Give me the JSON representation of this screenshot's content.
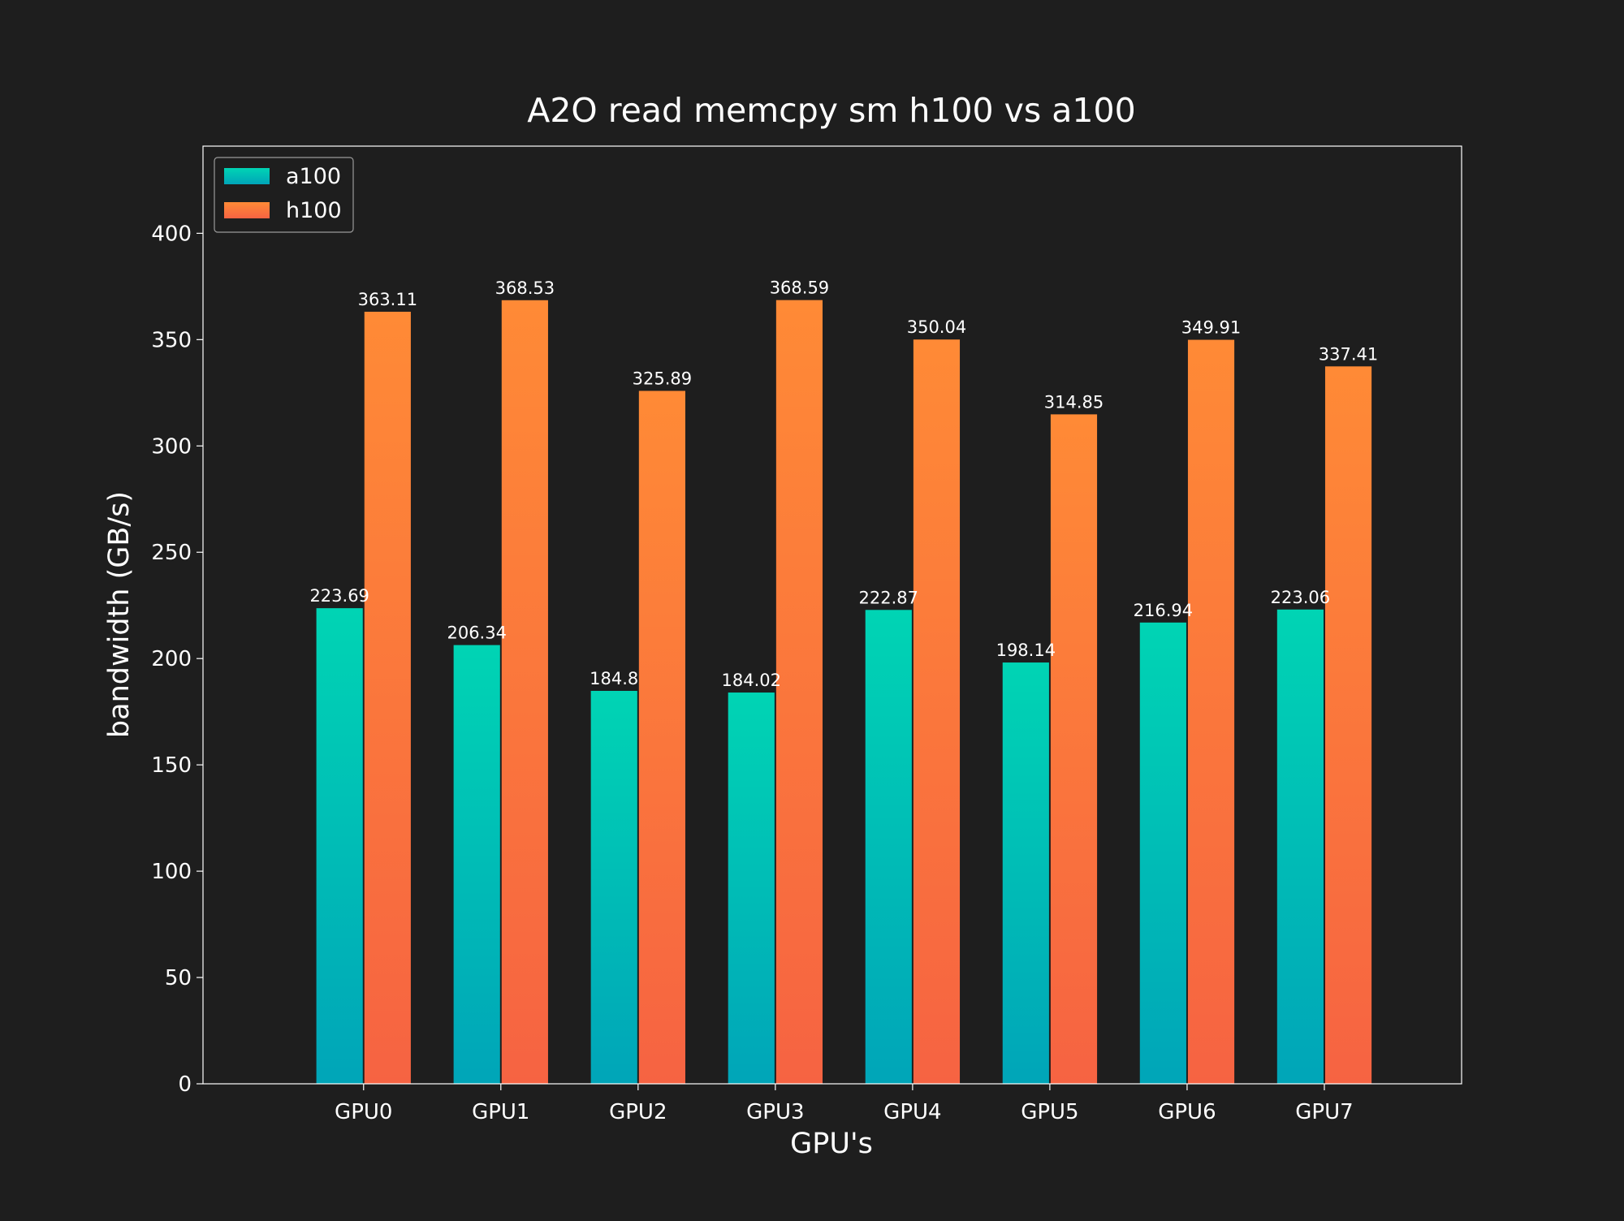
{
  "chart_data": {
    "type": "bar",
    "title": "A2O read memcpy sm h100 vs a100",
    "xlabel": "GPU's",
    "ylabel": "bandwidth (GB/s)",
    "categories": [
      "GPU0",
      "GPU1",
      "GPU2",
      "GPU3",
      "GPU4",
      "GPU5",
      "GPU6",
      "GPU7"
    ],
    "series": [
      {
        "name": "a100",
        "values": [
          223.69,
          206.34,
          184.8,
          184.02,
          222.87,
          198.14,
          216.94,
          223.06
        ],
        "labels": [
          "223.69",
          "206.34",
          "184.8",
          "184.02",
          "222.87",
          "198.14",
          "216.94",
          "223.06"
        ],
        "color_top": "#00d4b4",
        "color_bottom": "#00a5b8"
      },
      {
        "name": "h100",
        "values": [
          363.11,
          368.53,
          325.89,
          368.59,
          350.04,
          314.85,
          349.91,
          337.41
        ],
        "labels": [
          "363.11",
          "368.53",
          "325.89",
          "368.59",
          "350.04",
          "314.85",
          "349.91",
          "337.41"
        ],
        "color_top": "#ff8a36",
        "color_bottom": "#f66342"
      }
    ],
    "ylim": [
      0,
      441
    ],
    "yticks": [
      0,
      50,
      100,
      150,
      200,
      250,
      300,
      350,
      400
    ],
    "grid": false,
    "legend_position": "top-left",
    "background_color": "#1e1e1e",
    "axes_color": "#ffffff"
  }
}
